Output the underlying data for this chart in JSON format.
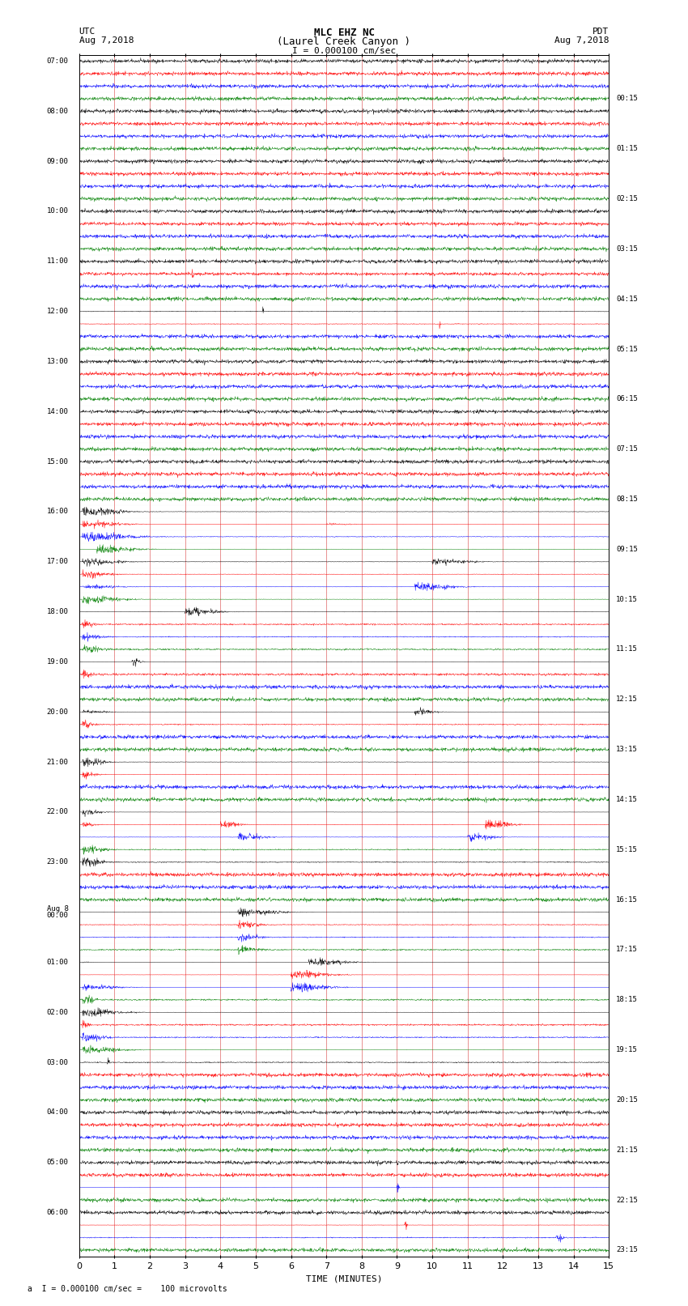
{
  "title_line1": "MLC EHZ NC",
  "title_line2": "(Laurel Creek Canyon )",
  "title_line3": "I = 0.000100 cm/sec",
  "left_label_top": "UTC",
  "left_label_date": "Aug 7,2018",
  "right_label_top": "PDT",
  "right_label_date": "Aug 7,2018",
  "xlabel": "TIME (MINUTES)",
  "footer": "a  I = 0.000100 cm/sec =    100 microvolts",
  "n_rows": 96,
  "colors": [
    "black",
    "red",
    "blue",
    "green"
  ],
  "left_hour_labels": [
    "07:00",
    "08:00",
    "09:00",
    "10:00",
    "11:00",
    "12:00",
    "13:00",
    "14:00",
    "15:00",
    "16:00",
    "17:00",
    "18:00",
    "19:00",
    "20:00",
    "21:00",
    "22:00",
    "23:00",
    "Aug 8",
    "01:00",
    "02:00",
    "03:00",
    "04:00",
    "05:00",
    "06:00"
  ],
  "aug8_row": 68,
  "right_hour_labels": [
    "00:15",
    "01:15",
    "02:15",
    "03:15",
    "04:15",
    "05:15",
    "06:15",
    "07:15",
    "08:15",
    "09:15",
    "10:15",
    "11:15",
    "12:15",
    "13:15",
    "14:15",
    "15:15",
    "16:15",
    "17:15",
    "18:15",
    "19:15",
    "20:15",
    "21:15",
    "22:15",
    "23:15"
  ],
  "bg_color": "#ffffff",
  "trace_linewidth": 0.35,
  "noise_level": 0.055,
  "xmin": 0,
  "xmax": 15,
  "xticks": [
    0,
    1,
    2,
    3,
    4,
    5,
    6,
    7,
    8,
    9,
    10,
    11,
    12,
    13,
    14,
    15
  ]
}
